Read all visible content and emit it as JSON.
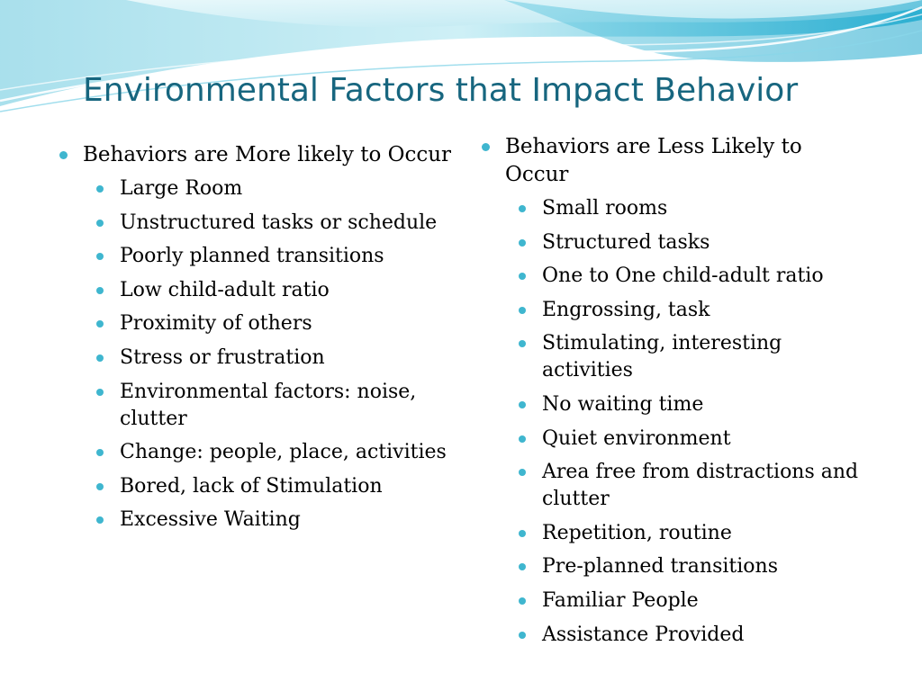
{
  "slide": {
    "title": "Environmental Factors that Impact Behavior",
    "accent_color": "#3fb6cf",
    "title_color": "#17667f"
  },
  "left": {
    "heading": "Behaviors are More likely to Occur",
    "items": [
      "Large Room",
      "Unstructured tasks or schedule",
      "Poorly planned transitions",
      "Low child-adult ratio",
      "Proximity of others",
      "Stress or frustration",
      "Environmental factors: noise, clutter",
      "Change:  people, place, activities",
      "Bored, lack of Stimulation",
      "Excessive Waiting"
    ]
  },
  "right": {
    "heading": "Behaviors are Less Likely to Occur",
    "items": [
      "Small rooms",
      "Structured tasks",
      "One to One child-adult ratio",
      "Engrossing, task",
      "Stimulating, interesting activities",
      "No waiting time",
      "Quiet environment",
      "Area free from distractions and  clutter",
      "Repetition, routine",
      "Pre-planned transitions",
      "Familiar People",
      "Assistance Provided"
    ]
  }
}
